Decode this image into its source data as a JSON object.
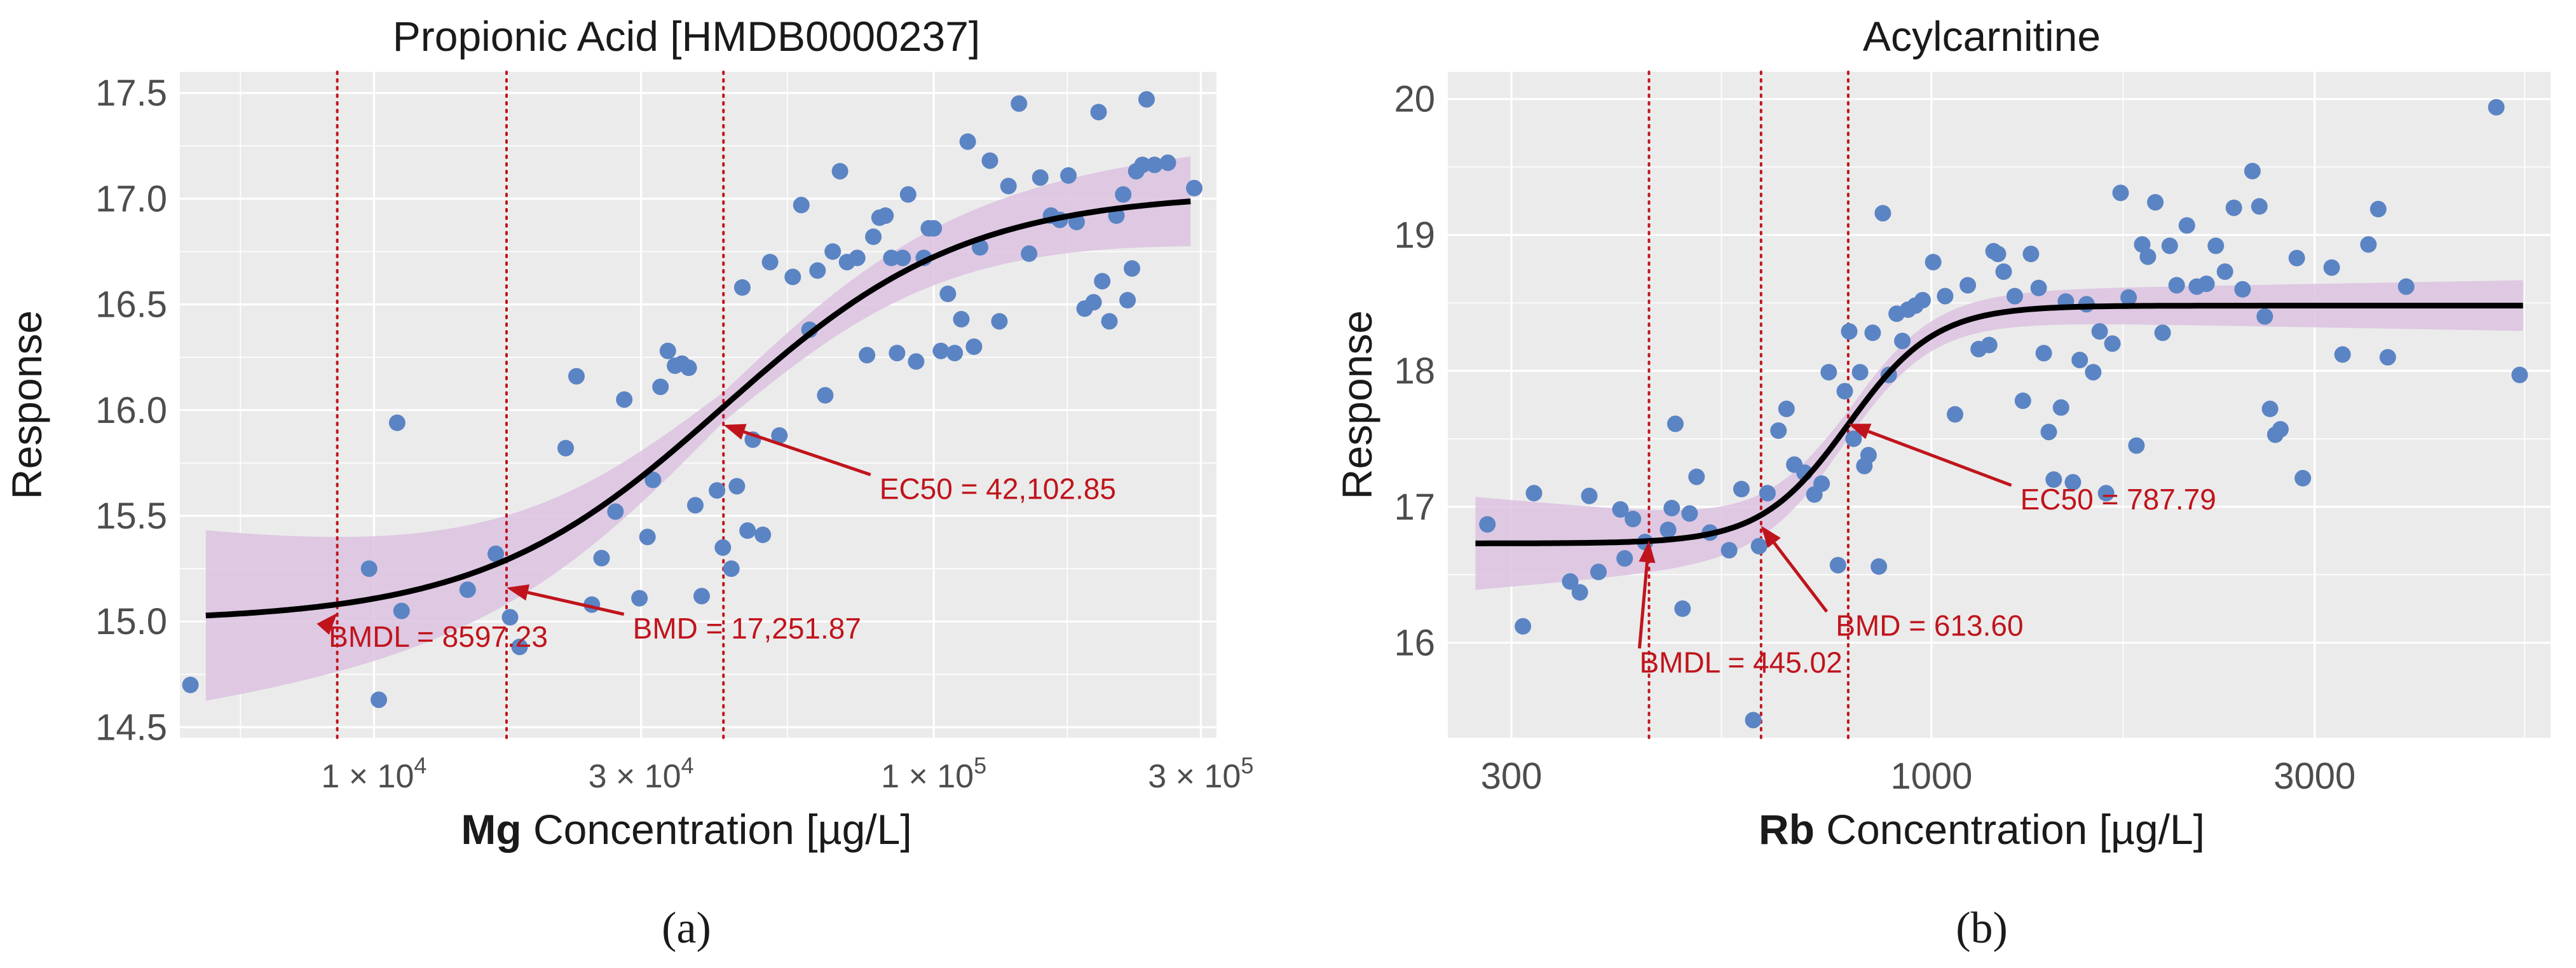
{
  "chart_data": [
    {
      "type": "scatter",
      "panel_label": "(a)",
      "title": "Propionic Acid [HMDB0000237]",
      "xlabel_bold": "Mg",
      "xlabel_rest": " Concentration [µg/L]",
      "ylabel": "Response",
      "x_scale": "log10",
      "xlim": [
        4500,
        320000
      ],
      "ylim": [
        14.45,
        17.6
      ],
      "x_ticks": [
        {
          "value": 10000,
          "mantissa": "1",
          "exponent": "4"
        },
        {
          "value": 30000,
          "mantissa": "3",
          "exponent": "4"
        },
        {
          "value": 100000,
          "mantissa": "1",
          "exponent": "5"
        },
        {
          "value": 300000,
          "mantissa": "3",
          "exponent": "5"
        }
      ],
      "y_ticks": [
        14.5,
        15.0,
        15.5,
        16.0,
        16.5,
        17.0,
        17.5
      ],
      "y_tick_decimals": 1,
      "grid": true,
      "fit": {
        "model": "4PL",
        "bottom": 15.0,
        "top": 17.03,
        "ec50": 42102.85,
        "hill": 2.0
      },
      "ci_band_halfwidth": {
        "at_low_x": 0.42,
        "min": 0.07,
        "at_high_x": 0.22
      },
      "vlines": [
        8597.23,
        17251.87,
        42102.85
      ],
      "annotations": [
        {
          "label": "BMDL = 8597.23",
          "x": 8597.23,
          "y": 15.04,
          "text_x": 8300,
          "text_y": 14.88
        },
        {
          "label": "BMD = 17,251.87",
          "x": 17251.87,
          "y": 15.16,
          "text_x": 29000,
          "text_y": 14.92
        },
        {
          "label": "EC50 = 42,102.85",
          "x": 42102.85,
          "y": 15.93,
          "text_x": 80000,
          "text_y": 15.58
        }
      ],
      "points": [
        [
          4700,
          14.7
        ],
        [
          9800,
          15.25
        ],
        [
          10200,
          14.63
        ],
        [
          11000,
          15.94
        ],
        [
          11200,
          15.05
        ],
        [
          14700,
          15.15
        ],
        [
          16500,
          15.32
        ],
        [
          17500,
          15.02
        ],
        [
          18200,
          14.88
        ],
        [
          22000,
          15.82
        ],
        [
          23000,
          16.16
        ],
        [
          24500,
          15.08
        ],
        [
          25500,
          15.3
        ],
        [
          27000,
          15.52
        ],
        [
          28000,
          16.05
        ],
        [
          29800,
          15.11
        ],
        [
          30800,
          15.4
        ],
        [
          31500,
          15.67
        ],
        [
          32500,
          16.11
        ],
        [
          33500,
          16.28
        ],
        [
          34500,
          16.21
        ],
        [
          35500,
          16.22
        ],
        [
          36500,
          16.2
        ],
        [
          37500,
          15.55
        ],
        [
          38500,
          15.12
        ],
        [
          41000,
          15.62
        ],
        [
          42000,
          15.35
        ],
        [
          43500,
          15.25
        ],
        [
          44500,
          15.64
        ],
        [
          45500,
          16.58
        ],
        [
          46500,
          15.43
        ],
        [
          47500,
          15.86
        ],
        [
          49500,
          15.41
        ],
        [
          51000,
          16.7
        ],
        [
          53000,
          15.88
        ],
        [
          56000,
          16.63
        ],
        [
          58000,
          16.97
        ],
        [
          60000,
          16.38
        ],
        [
          62000,
          16.66
        ],
        [
          64000,
          16.07
        ],
        [
          66000,
          16.75
        ],
        [
          68000,
          17.13
        ],
        [
          70000,
          16.7
        ],
        [
          73000,
          16.72
        ],
        [
          76000,
          16.26
        ],
        [
          78000,
          16.82
        ],
        [
          80000,
          16.91
        ],
        [
          82000,
          16.92
        ],
        [
          84000,
          16.72
        ],
        [
          86000,
          16.27
        ],
        [
          88000,
          16.72
        ],
        [
          90000,
          17.02
        ],
        [
          93000,
          16.23
        ],
        [
          96000,
          16.72
        ],
        [
          98000,
          16.86
        ],
        [
          100000,
          16.86
        ],
        [
          103000,
          16.28
        ],
        [
          106000,
          16.55
        ],
        [
          109000,
          16.27
        ],
        [
          112000,
          16.43
        ],
        [
          115000,
          17.27
        ],
        [
          118000,
          16.3
        ],
        [
          121000,
          16.77
        ],
        [
          126000,
          17.18
        ],
        [
          131000,
          16.42
        ],
        [
          136000,
          17.06
        ],
        [
          142000,
          17.45
        ],
        [
          148000,
          16.74
        ],
        [
          155000,
          17.1
        ],
        [
          162000,
          16.92
        ],
        [
          168000,
          16.9
        ],
        [
          174000,
          17.11
        ],
        [
          180000,
          16.89
        ],
        [
          186000,
          16.48
        ],
        [
          193000,
          16.51
        ],
        [
          197000,
          17.41
        ],
        [
          200000,
          16.61
        ],
        [
          206000,
          16.42
        ],
        [
          212000,
          16.92
        ],
        [
          218000,
          17.02
        ],
        [
          222000,
          16.52
        ],
        [
          226000,
          16.67
        ],
        [
          230000,
          17.13
        ],
        [
          236000,
          17.16
        ],
        [
          240000,
          17.47
        ],
        [
          248000,
          17.16
        ],
        [
          262000,
          17.17
        ],
        [
          292000,
          17.05
        ]
      ]
    },
    {
      "type": "scatter",
      "panel_label": "(b)",
      "title": "Acylcarnitine",
      "xlabel_bold": "Rb",
      "xlabel_rest": " Concentration [µg/L]",
      "ylabel": "Response",
      "x_scale": "log10",
      "xlim": [
        250,
        5900
      ],
      "ylim": [
        15.3,
        20.2
      ],
      "x_ticks": [
        {
          "value": 300,
          "label": "300"
        },
        {
          "value": 1000,
          "label": "1000"
        },
        {
          "value": 3000,
          "label": "3000"
        }
      ],
      "y_ticks": [
        16,
        17,
        18,
        19,
        20
      ],
      "y_tick_decimals": 0,
      "grid": true,
      "fit": {
        "model": "4PL",
        "bottom": 16.73,
        "top": 18.48,
        "ec50": 787.79,
        "hill": 8.0
      },
      "ci_band_halfwidth": {
        "at_low_x": 0.36,
        "min": 0.1,
        "at_high_x": 0.19
      },
      "vlines": [
        445.02,
        613.6,
        787.79
      ],
      "annotations": [
        {
          "label": "BMDL = 445.02",
          "x": 445.02,
          "y": 16.75,
          "text_x": 433,
          "text_y": 15.78
        },
        {
          "label": "BMD = 613.60",
          "x": 613.6,
          "y": 16.86,
          "text_x": 760,
          "text_y": 16.05
        },
        {
          "label": "EC50 = 787.79",
          "x": 787.79,
          "y": 17.61,
          "text_x": 1290,
          "text_y": 16.98
        }
      ],
      "points": [
        [
          280,
          16.87
        ],
        [
          310,
          16.12
        ],
        [
          320,
          17.1
        ],
        [
          355,
          16.45
        ],
        [
          365,
          16.37
        ],
        [
          375,
          17.08
        ],
        [
          385,
          16.52
        ],
        [
          410,
          16.98
        ],
        [
          415,
          16.62
        ],
        [
          425,
          16.91
        ],
        [
          440,
          16.74
        ],
        [
          470,
          16.83
        ],
        [
          475,
          16.99
        ],
        [
          480,
          17.61
        ],
        [
          490,
          16.25
        ],
        [
          500,
          16.95
        ],
        [
          510,
          17.22
        ],
        [
          530,
          16.81
        ],
        [
          560,
          16.68
        ],
        [
          580,
          17.13
        ],
        [
          600,
          15.43
        ],
        [
          610,
          16.71
        ],
        [
          625,
          17.1
        ],
        [
          645,
          17.56
        ],
        [
          660,
          17.72
        ],
        [
          675,
          17.31
        ],
        [
          695,
          17.25
        ],
        [
          715,
          17.09
        ],
        [
          730,
          17.17
        ],
        [
          745,
          17.99
        ],
        [
          765,
          16.57
        ],
        [
          780,
          17.85
        ],
        [
          790,
          18.29
        ],
        [
          800,
          17.5
        ],
        [
          815,
          17.99
        ],
        [
          825,
          17.3
        ],
        [
          835,
          17.38
        ],
        [
          845,
          18.28
        ],
        [
          860,
          16.56
        ],
        [
          870,
          19.16
        ],
        [
          885,
          17.97
        ],
        [
          905,
          18.42
        ],
        [
          920,
          18.22
        ],
        [
          935,
          18.45
        ],
        [
          955,
          18.48
        ],
        [
          975,
          18.52
        ],
        [
          1005,
          18.8
        ],
        [
          1040,
          18.55
        ],
        [
          1070,
          17.68
        ],
        [
          1110,
          18.63
        ],
        [
          1145,
          18.16
        ],
        [
          1180,
          18.19
        ],
        [
          1195,
          18.88
        ],
        [
          1210,
          18.86
        ],
        [
          1230,
          18.73
        ],
        [
          1270,
          18.55
        ],
        [
          1300,
          17.78
        ],
        [
          1330,
          18.86
        ],
        [
          1360,
          18.61
        ],
        [
          1380,
          18.13
        ],
        [
          1400,
          17.55
        ],
        [
          1420,
          17.2
        ],
        [
          1450,
          17.73
        ],
        [
          1470,
          18.51
        ],
        [
          1500,
          17.18
        ],
        [
          1530,
          18.08
        ],
        [
          1560,
          18.49
        ],
        [
          1590,
          17.99
        ],
        [
          1620,
          18.29
        ],
        [
          1650,
          17.1
        ],
        [
          1680,
          18.2
        ],
        [
          1720,
          19.31
        ],
        [
          1760,
          18.54
        ],
        [
          1800,
          17.45
        ],
        [
          1830,
          18.93
        ],
        [
          1860,
          18.84
        ],
        [
          1900,
          19.24
        ],
        [
          1940,
          18.28
        ],
        [
          1980,
          18.92
        ],
        [
          2020,
          18.63
        ],
        [
          2080,
          19.07
        ],
        [
          2140,
          18.62
        ],
        [
          2200,
          18.64
        ],
        [
          2260,
          18.92
        ],
        [
          2320,
          18.73
        ],
        [
          2380,
          19.2
        ],
        [
          2440,
          18.6
        ],
        [
          2510,
          19.47
        ],
        [
          2560,
          19.21
        ],
        [
          2600,
          18.4
        ],
        [
          2640,
          17.72
        ],
        [
          2680,
          17.53
        ],
        [
          2720,
          17.57
        ],
        [
          2850,
          18.83
        ],
        [
          2900,
          17.21
        ],
        [
          3150,
          18.76
        ],
        [
          3250,
          18.12
        ],
        [
          3500,
          18.93
        ],
        [
          3600,
          19.19
        ],
        [
          3700,
          18.1
        ],
        [
          3900,
          18.62
        ],
        [
          5050,
          19.94
        ],
        [
          5400,
          17.97
        ]
      ]
    }
  ]
}
